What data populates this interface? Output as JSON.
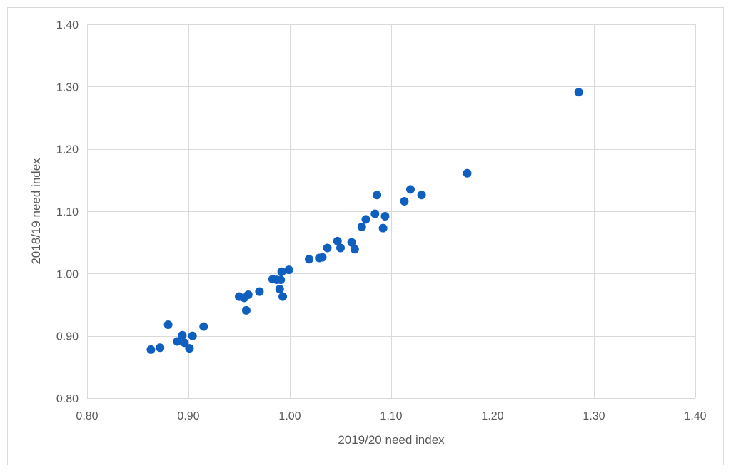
{
  "chart_data": {
    "type": "scatter",
    "title": "",
    "xlabel": "2019/20 need index",
    "ylabel": "2018/19 need index",
    "xlim": [
      0.8,
      1.4
    ],
    "ylim": [
      0.8,
      1.4
    ],
    "x_ticks": [
      0.8,
      0.9,
      1.0,
      1.1,
      1.2,
      1.3,
      1.4
    ],
    "y_ticks": [
      0.8,
      0.9,
      1.0,
      1.1,
      1.2,
      1.3,
      1.4
    ],
    "x_tick_labels": [
      "0.80",
      "0.90",
      "1.00",
      "1.10",
      "1.20",
      "1.30",
      "1.40"
    ],
    "y_tick_labels": [
      "0.80",
      "0.90",
      "1.00",
      "1.10",
      "1.20",
      "1.30",
      "1.40"
    ],
    "grid": true,
    "marker_color": "#0f5fbf",
    "points": [
      {
        "x": 0.863,
        "y": 0.878
      },
      {
        "x": 0.872,
        "y": 0.881
      },
      {
        "x": 0.88,
        "y": 0.918
      },
      {
        "x": 0.889,
        "y": 0.891
      },
      {
        "x": 0.894,
        "y": 0.901
      },
      {
        "x": 0.896,
        "y": 0.889
      },
      {
        "x": 0.901,
        "y": 0.88
      },
      {
        "x": 0.904,
        "y": 0.9
      },
      {
        "x": 0.915,
        "y": 0.915
      },
      {
        "x": 0.95,
        "y": 0.963
      },
      {
        "x": 0.955,
        "y": 0.961
      },
      {
        "x": 0.957,
        "y": 0.941
      },
      {
        "x": 0.959,
        "y": 0.966
      },
      {
        "x": 0.97,
        "y": 0.971
      },
      {
        "x": 0.983,
        "y": 0.991
      },
      {
        "x": 0.987,
        "y": 0.99
      },
      {
        "x": 0.99,
        "y": 0.975
      },
      {
        "x": 0.991,
        "y": 0.99
      },
      {
        "x": 0.992,
        "y": 1.003
      },
      {
        "x": 0.993,
        "y": 0.963
      },
      {
        "x": 0.999,
        "y": 1.006
      },
      {
        "x": 1.019,
        "y": 1.023
      },
      {
        "x": 1.029,
        "y": 1.025
      },
      {
        "x": 1.032,
        "y": 1.026
      },
      {
        "x": 1.037,
        "y": 1.041
      },
      {
        "x": 1.047,
        "y": 1.052
      },
      {
        "x": 1.05,
        "y": 1.041
      },
      {
        "x": 1.061,
        "y": 1.05
      },
      {
        "x": 1.064,
        "y": 1.039
      },
      {
        "x": 1.071,
        "y": 1.075
      },
      {
        "x": 1.075,
        "y": 1.087
      },
      {
        "x": 1.084,
        "y": 1.096
      },
      {
        "x": 1.086,
        "y": 1.126
      },
      {
        "x": 1.092,
        "y": 1.073
      },
      {
        "x": 1.094,
        "y": 1.092
      },
      {
        "x": 1.113,
        "y": 1.116
      },
      {
        "x": 1.119,
        "y": 1.135
      },
      {
        "x": 1.13,
        "y": 1.126
      },
      {
        "x": 1.175,
        "y": 1.161
      },
      {
        "x": 1.285,
        "y": 1.291
      }
    ]
  }
}
